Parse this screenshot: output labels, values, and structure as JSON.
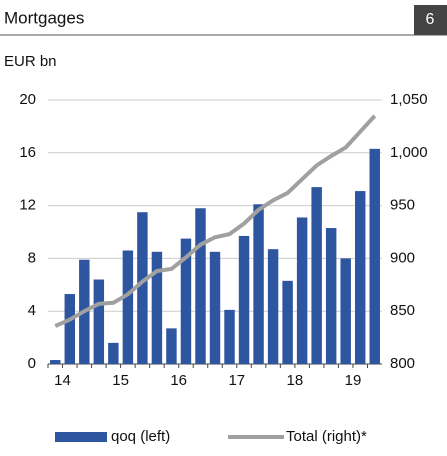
{
  "chart_data": {
    "type": "bar_line",
    "title": "Mortgages",
    "page_number": "6",
    "unit_label": "EUR bn",
    "categories": [
      "14",
      null,
      null,
      null,
      "15",
      null,
      null,
      null,
      "16",
      null,
      null,
      null,
      "17",
      null,
      null,
      null,
      "18",
      null,
      null,
      null,
      "19",
      null,
      null
    ],
    "series": [
      {
        "name": "qoq (left)",
        "type": "bar",
        "color": "#2e56a0",
        "axis": "y",
        "values": [
          0.3,
          5.3,
          7.9,
          6.4,
          1.6,
          8.6,
          11.5,
          8.5,
          2.7,
          9.5,
          11.8,
          8.5,
          4.1,
          9.7,
          12.1,
          8.7,
          6.3,
          11.1,
          13.4,
          10.3,
          8.0,
          13.1,
          16.3
        ]
      },
      {
        "name": "Total (right)*",
        "type": "line",
        "color": "#a0a0a0",
        "axis": "y2",
        "values": [
          836,
          842,
          850,
          857,
          858,
          866,
          878,
          888,
          890,
          901,
          913,
          920,
          923,
          933,
          946,
          955,
          962,
          975,
          988,
          997,
          1005,
          1020,
          1035
        ]
      }
    ],
    "ylim": [
      0,
      20
    ],
    "yticks": [
      0,
      4,
      8,
      12,
      16,
      20
    ],
    "y2lim": [
      800,
      1050
    ],
    "y2ticks": [
      800,
      850,
      900,
      950,
      {
        "value": 1000,
        "label": "1,000"
      },
      {
        "value": 1050,
        "label": "1,050"
      }
    ],
    "grid": true
  }
}
